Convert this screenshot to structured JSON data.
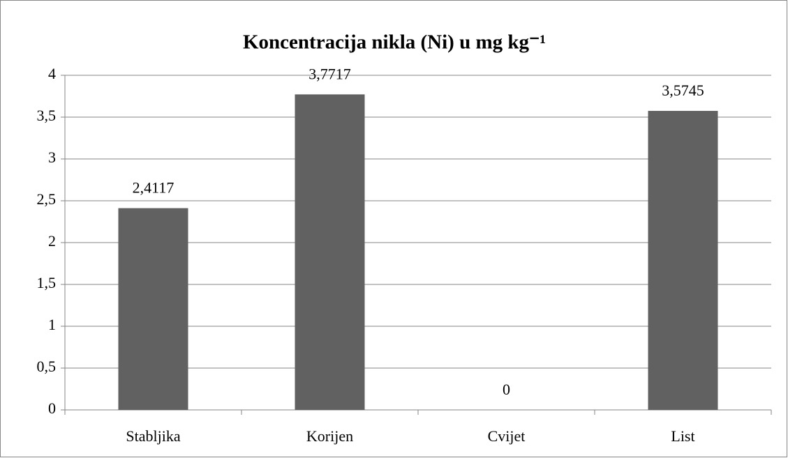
{
  "chart_data": {
    "type": "bar",
    "title": "Koncentracija nikla (Ni) u mg kg⁻¹",
    "categories": [
      "Stabljika",
      "Korijen",
      "Cvijet",
      "List"
    ],
    "values": [
      2.4117,
      3.7717,
      0,
      3.5745
    ],
    "value_labels": [
      "2,4117",
      "3,7717",
      "0",
      "3,5745"
    ],
    "color": "#616161",
    "ylim": [
      0,
      4
    ],
    "yticks": [
      0,
      {
        "value": 0.5,
        "label": "0,5"
      },
      1,
      {
        "value": 1.5,
        "label": "1,5"
      },
      2,
      {
        "value": 2.5,
        "label": "2,5"
      },
      3,
      {
        "value": 3.5,
        "label": "3,5"
      },
      4
    ],
    "grid": true
  }
}
